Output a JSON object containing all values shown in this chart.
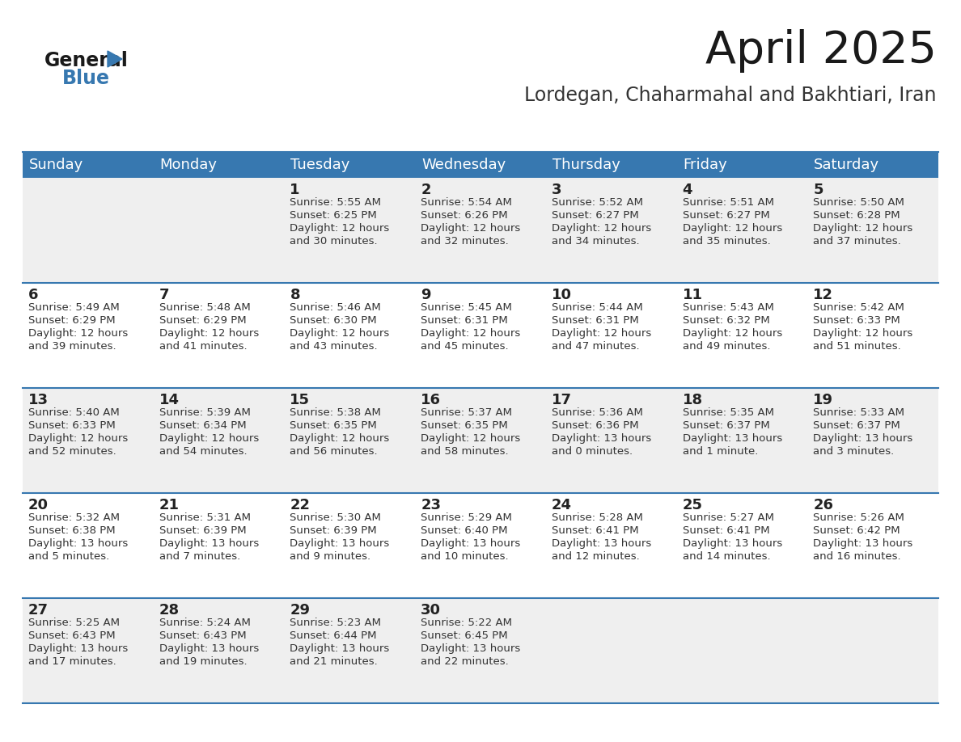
{
  "title": "April 2025",
  "subtitle": "Lordegan, Chaharmahal and Bakhtiari, Iran",
  "header_bg": "#3778b0",
  "header_text_color": "#ffffff",
  "row_bg_odd": "#efefef",
  "row_bg_even": "#ffffff",
  "separator_color": "#3778b0",
  "day_names": [
    "Sunday",
    "Monday",
    "Tuesday",
    "Wednesday",
    "Thursday",
    "Friday",
    "Saturday"
  ],
  "calendar": [
    [
      {
        "day": "",
        "sunrise": "",
        "sunset": "",
        "daylight": ""
      },
      {
        "day": "",
        "sunrise": "",
        "sunset": "",
        "daylight": ""
      },
      {
        "day": "1",
        "sunrise": "Sunrise: 5:55 AM",
        "sunset": "Sunset: 6:25 PM",
        "daylight": "Daylight: 12 hours\nand 30 minutes."
      },
      {
        "day": "2",
        "sunrise": "Sunrise: 5:54 AM",
        "sunset": "Sunset: 6:26 PM",
        "daylight": "Daylight: 12 hours\nand 32 minutes."
      },
      {
        "day": "3",
        "sunrise": "Sunrise: 5:52 AM",
        "sunset": "Sunset: 6:27 PM",
        "daylight": "Daylight: 12 hours\nand 34 minutes."
      },
      {
        "day": "4",
        "sunrise": "Sunrise: 5:51 AM",
        "sunset": "Sunset: 6:27 PM",
        "daylight": "Daylight: 12 hours\nand 35 minutes."
      },
      {
        "day": "5",
        "sunrise": "Sunrise: 5:50 AM",
        "sunset": "Sunset: 6:28 PM",
        "daylight": "Daylight: 12 hours\nand 37 minutes."
      }
    ],
    [
      {
        "day": "6",
        "sunrise": "Sunrise: 5:49 AM",
        "sunset": "Sunset: 6:29 PM",
        "daylight": "Daylight: 12 hours\nand 39 minutes."
      },
      {
        "day": "7",
        "sunrise": "Sunrise: 5:48 AM",
        "sunset": "Sunset: 6:29 PM",
        "daylight": "Daylight: 12 hours\nand 41 minutes."
      },
      {
        "day": "8",
        "sunrise": "Sunrise: 5:46 AM",
        "sunset": "Sunset: 6:30 PM",
        "daylight": "Daylight: 12 hours\nand 43 minutes."
      },
      {
        "day": "9",
        "sunrise": "Sunrise: 5:45 AM",
        "sunset": "Sunset: 6:31 PM",
        "daylight": "Daylight: 12 hours\nand 45 minutes."
      },
      {
        "day": "10",
        "sunrise": "Sunrise: 5:44 AM",
        "sunset": "Sunset: 6:31 PM",
        "daylight": "Daylight: 12 hours\nand 47 minutes."
      },
      {
        "day": "11",
        "sunrise": "Sunrise: 5:43 AM",
        "sunset": "Sunset: 6:32 PM",
        "daylight": "Daylight: 12 hours\nand 49 minutes."
      },
      {
        "day": "12",
        "sunrise": "Sunrise: 5:42 AM",
        "sunset": "Sunset: 6:33 PM",
        "daylight": "Daylight: 12 hours\nand 51 minutes."
      }
    ],
    [
      {
        "day": "13",
        "sunrise": "Sunrise: 5:40 AM",
        "sunset": "Sunset: 6:33 PM",
        "daylight": "Daylight: 12 hours\nand 52 minutes."
      },
      {
        "day": "14",
        "sunrise": "Sunrise: 5:39 AM",
        "sunset": "Sunset: 6:34 PM",
        "daylight": "Daylight: 12 hours\nand 54 minutes."
      },
      {
        "day": "15",
        "sunrise": "Sunrise: 5:38 AM",
        "sunset": "Sunset: 6:35 PM",
        "daylight": "Daylight: 12 hours\nand 56 minutes."
      },
      {
        "day": "16",
        "sunrise": "Sunrise: 5:37 AM",
        "sunset": "Sunset: 6:35 PM",
        "daylight": "Daylight: 12 hours\nand 58 minutes."
      },
      {
        "day": "17",
        "sunrise": "Sunrise: 5:36 AM",
        "sunset": "Sunset: 6:36 PM",
        "daylight": "Daylight: 13 hours\nand 0 minutes."
      },
      {
        "day": "18",
        "sunrise": "Sunrise: 5:35 AM",
        "sunset": "Sunset: 6:37 PM",
        "daylight": "Daylight: 13 hours\nand 1 minute."
      },
      {
        "day": "19",
        "sunrise": "Sunrise: 5:33 AM",
        "sunset": "Sunset: 6:37 PM",
        "daylight": "Daylight: 13 hours\nand 3 minutes."
      }
    ],
    [
      {
        "day": "20",
        "sunrise": "Sunrise: 5:32 AM",
        "sunset": "Sunset: 6:38 PM",
        "daylight": "Daylight: 13 hours\nand 5 minutes."
      },
      {
        "day": "21",
        "sunrise": "Sunrise: 5:31 AM",
        "sunset": "Sunset: 6:39 PM",
        "daylight": "Daylight: 13 hours\nand 7 minutes."
      },
      {
        "day": "22",
        "sunrise": "Sunrise: 5:30 AM",
        "sunset": "Sunset: 6:39 PM",
        "daylight": "Daylight: 13 hours\nand 9 minutes."
      },
      {
        "day": "23",
        "sunrise": "Sunrise: 5:29 AM",
        "sunset": "Sunset: 6:40 PM",
        "daylight": "Daylight: 13 hours\nand 10 minutes."
      },
      {
        "day": "24",
        "sunrise": "Sunrise: 5:28 AM",
        "sunset": "Sunset: 6:41 PM",
        "daylight": "Daylight: 13 hours\nand 12 minutes."
      },
      {
        "day": "25",
        "sunrise": "Sunrise: 5:27 AM",
        "sunset": "Sunset: 6:41 PM",
        "daylight": "Daylight: 13 hours\nand 14 minutes."
      },
      {
        "day": "26",
        "sunrise": "Sunrise: 5:26 AM",
        "sunset": "Sunset: 6:42 PM",
        "daylight": "Daylight: 13 hours\nand 16 minutes."
      }
    ],
    [
      {
        "day": "27",
        "sunrise": "Sunrise: 5:25 AM",
        "sunset": "Sunset: 6:43 PM",
        "daylight": "Daylight: 13 hours\nand 17 minutes."
      },
      {
        "day": "28",
        "sunrise": "Sunrise: 5:24 AM",
        "sunset": "Sunset: 6:43 PM",
        "daylight": "Daylight: 13 hours\nand 19 minutes."
      },
      {
        "day": "29",
        "sunrise": "Sunrise: 5:23 AM",
        "sunset": "Sunset: 6:44 PM",
        "daylight": "Daylight: 13 hours\nand 21 minutes."
      },
      {
        "day": "30",
        "sunrise": "Sunrise: 5:22 AM",
        "sunset": "Sunset: 6:45 PM",
        "daylight": "Daylight: 13 hours\nand 22 minutes."
      },
      {
        "day": "",
        "sunrise": "",
        "sunset": "",
        "daylight": ""
      },
      {
        "day": "",
        "sunrise": "",
        "sunset": "",
        "daylight": ""
      },
      {
        "day": "",
        "sunrise": "",
        "sunset": "",
        "daylight": ""
      }
    ]
  ]
}
